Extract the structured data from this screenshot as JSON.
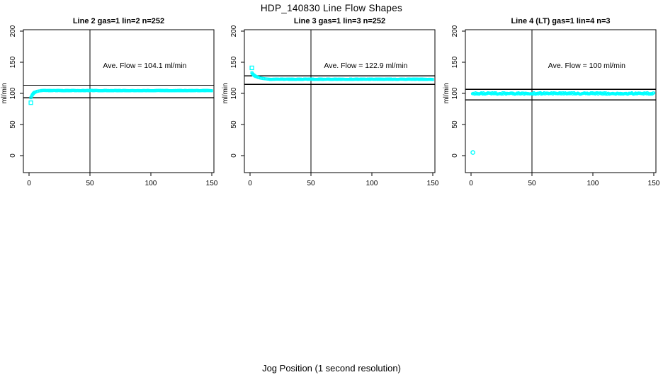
{
  "page": {
    "title": "HDP_140830  Line Flow Shapes",
    "xlabel": "Jog Position (1 second resolution)",
    "background": "#ffffff",
    "axis_color": "#000000",
    "data_color": "#00ffff"
  },
  "chart_data": [
    {
      "type": "scatter",
      "title": "Line 2 gas=1 lin=2 n=252",
      "ylabel": "ml/min",
      "annotation": "Ave. Flow =  104.1  ml/min",
      "ave_flow": 104.1,
      "n": 252,
      "xlim": [
        0,
        150
      ],
      "ylim": [
        0,
        200
      ],
      "x_ticks": [
        0,
        50,
        100,
        150
      ],
      "y_ticks": [
        0,
        50,
        100,
        150,
        200
      ],
      "ref_line_x": 50,
      "ref_lines_y": [
        113,
        93
      ],
      "marker": "open-square",
      "color": "#00ffff",
      "series": {
        "name": "flow",
        "transient": [
          [
            1.5,
            93
          ],
          [
            2,
            95
          ],
          [
            2.5,
            97
          ],
          [
            3,
            98.5
          ],
          [
            3.5,
            99.8
          ],
          [
            4,
            100.8
          ],
          [
            4.5,
            101.5
          ],
          [
            5,
            102
          ],
          [
            6,
            102.8
          ],
          [
            7,
            103.4
          ],
          [
            8,
            103.8
          ],
          [
            9,
            104.1
          ],
          [
            10,
            104.3
          ]
        ],
        "plateau": {
          "x_start": 10.6,
          "x_end": 150,
          "step": 0.6,
          "y": 104.5,
          "jitter": 0.4
        },
        "outliers": [
          [
            1.5,
            85
          ]
        ]
      }
    },
    {
      "type": "scatter",
      "title": "Line 3 gas=1 lin=3 n=252",
      "ylabel": "ml/min",
      "annotation": "Ave. Flow =  122.9  ml/min",
      "ave_flow": 122.9,
      "n": 252,
      "xlim": [
        0,
        150
      ],
      "ylim": [
        0,
        200
      ],
      "x_ticks": [
        0,
        50,
        100,
        150
      ],
      "y_ticks": [
        0,
        50,
        100,
        150,
        200
      ],
      "ref_line_x": 50,
      "ref_lines_y": [
        128,
        114.5
      ],
      "marker": "open-square",
      "color": "#00ffff",
      "series": {
        "name": "flow",
        "transient": [
          [
            1.5,
            133
          ],
          [
            2,
            131.5
          ],
          [
            2.5,
            130.5
          ],
          [
            3,
            129.5
          ],
          [
            3.5,
            128.8
          ],
          [
            4,
            128
          ],
          [
            4.5,
            127.5
          ],
          [
            5,
            127
          ],
          [
            6,
            126.2
          ],
          [
            7,
            125.6
          ],
          [
            8,
            125
          ],
          [
            9,
            124.5
          ],
          [
            10,
            124.1
          ],
          [
            11,
            123.8
          ],
          [
            12,
            123.5
          ],
          [
            13,
            123.3
          ],
          [
            14,
            123.1
          ],
          [
            15,
            122.9
          ],
          [
            16,
            122.8
          ]
        ],
        "plateau": {
          "x_start": 16.6,
          "x_end": 150,
          "step": 0.6,
          "y": 122.7,
          "jitter": 0.45
        },
        "outliers": [
          [
            1.5,
            141
          ]
        ]
      }
    },
    {
      "type": "scatter",
      "title": "Line 4 (LT) gas=1 lin=4 n=3",
      "ylabel": "ml/min",
      "annotation": "Ave. Flow =  100  ml/min",
      "ave_flow": 100,
      "n": 3,
      "xlim": [
        0,
        150
      ],
      "ylim": [
        0,
        200
      ],
      "x_ticks": [
        0,
        50,
        100,
        150
      ],
      "y_ticks": [
        0,
        50,
        100,
        150,
        200
      ],
      "ref_line_x": 50,
      "ref_lines_y": [
        106.5,
        89.5
      ],
      "marker": "open-circle",
      "color": "#00ffff",
      "series": {
        "name": "flow",
        "transient": [
          [
            1.2,
            99.5
          ],
          [
            1.8,
            100
          ],
          [
            2.4,
            99.2
          ]
        ],
        "plateau": {
          "x_start": 3,
          "x_end": 150,
          "step": 0.6,
          "y": 99.8,
          "jitter": 1.2
        },
        "outliers": [
          [
            1.5,
            5
          ]
        ]
      }
    }
  ]
}
